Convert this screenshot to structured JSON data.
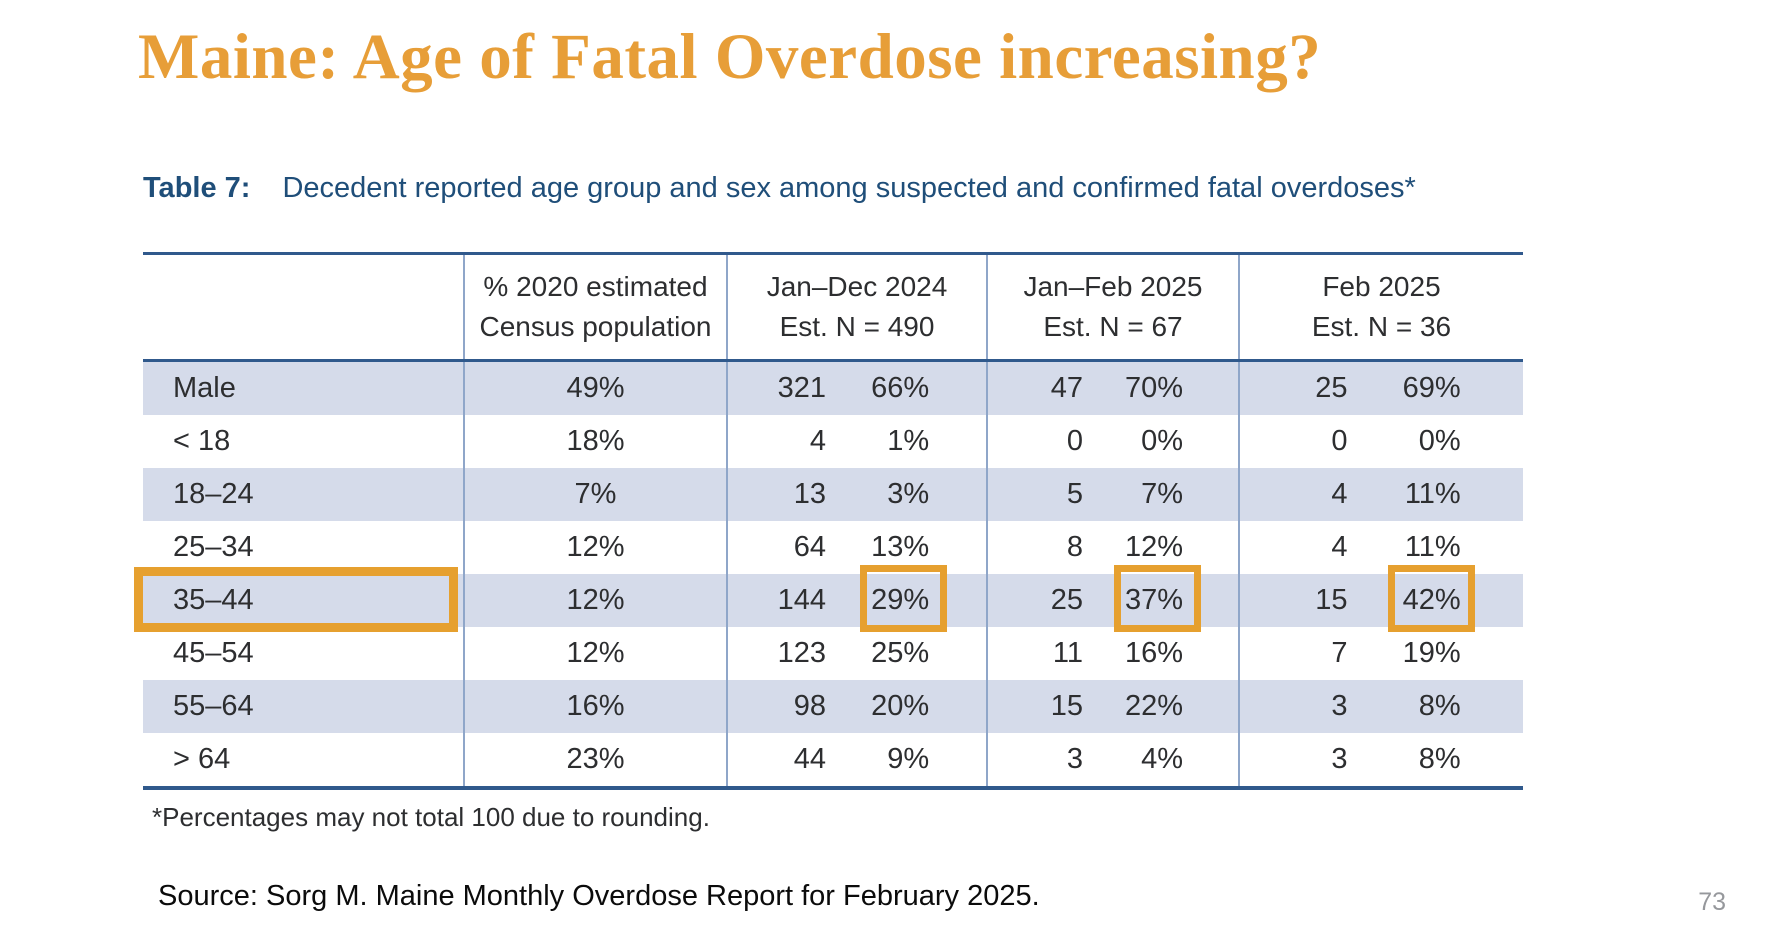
{
  "page": {
    "title": "Maine: Age of Fatal Overdose increasing?",
    "page_number": "73"
  },
  "caption": {
    "label": "Table 7:",
    "text": "Decedent reported age group and sex among suspected and confirmed fatal overdoses*"
  },
  "table": {
    "columns": [
      {
        "line1": "% 2020 estimated",
        "line2": "Census population"
      },
      {
        "line1": "Jan–Dec 2024",
        "line2": "Est. N = 490"
      },
      {
        "line1": "Jan–Feb 2025",
        "line2": "Est. N = 67"
      },
      {
        "line1": "Feb 2025",
        "line2": "Est. N = 36"
      }
    ],
    "rows": [
      {
        "label": "Male",
        "census": "49%",
        "jan_dec_2024": {
          "n": "321",
          "pct": "66%"
        },
        "jan_feb_2025": {
          "n": "47",
          "pct": "70%"
        },
        "feb_2025": {
          "n": "25",
          "pct": "69%"
        }
      },
      {
        "label": "< 18",
        "census": "18%",
        "jan_dec_2024": {
          "n": "4",
          "pct": "1%"
        },
        "jan_feb_2025": {
          "n": "0",
          "pct": "0%"
        },
        "feb_2025": {
          "n": "0",
          "pct": "0%"
        }
      },
      {
        "label": "18–24",
        "census": "7%",
        "jan_dec_2024": {
          "n": "13",
          "pct": "3%"
        },
        "jan_feb_2025": {
          "n": "5",
          "pct": "7%"
        },
        "feb_2025": {
          "n": "4",
          "pct": "11%"
        }
      },
      {
        "label": "25–34",
        "census": "12%",
        "jan_dec_2024": {
          "n": "64",
          "pct": "13%"
        },
        "jan_feb_2025": {
          "n": "8",
          "pct": "12%"
        },
        "feb_2025": {
          "n": "4",
          "pct": "11%"
        }
      },
      {
        "label": "35–44",
        "census": "12%",
        "jan_dec_2024": {
          "n": "144",
          "pct": "29%"
        },
        "jan_feb_2025": {
          "n": "25",
          "pct": "37%"
        },
        "feb_2025": {
          "n": "15",
          "pct": "42%"
        }
      },
      {
        "label": "45–54",
        "census": "12%",
        "jan_dec_2024": {
          "n": "123",
          "pct": "25%"
        },
        "jan_feb_2025": {
          "n": "11",
          "pct": "16%"
        },
        "feb_2025": {
          "n": "7",
          "pct": "19%"
        }
      },
      {
        "label": "55–64",
        "census": "16%",
        "jan_dec_2024": {
          "n": "98",
          "pct": "20%"
        },
        "jan_feb_2025": {
          "n": "15",
          "pct": "22%"
        },
        "feb_2025": {
          "n": "3",
          "pct": "8%"
        }
      },
      {
        "label": "> 64",
        "census": "23%",
        "jan_dec_2024": {
          "n": "44",
          "pct": "9%"
        },
        "jan_feb_2025": {
          "n": "3",
          "pct": "4%"
        },
        "feb_2025": {
          "n": "3",
          "pct": "8%"
        }
      }
    ]
  },
  "highlights": {
    "row_label": "35–44",
    "boxed_values": [
      "29%",
      "37%",
      "42%"
    ],
    "box_color": "#E6A02F"
  },
  "footnote": "*Percentages may not total 100 due to rounding.",
  "source": "Source: Sorg M. Maine Monthly Overdose Report for February 2025.",
  "colors": {
    "title": "#E79E38",
    "caption": "#1F4E79",
    "table_border": "#30598C",
    "row_shade": "#D5DBEA",
    "column_divider": "#8FA6C9"
  }
}
